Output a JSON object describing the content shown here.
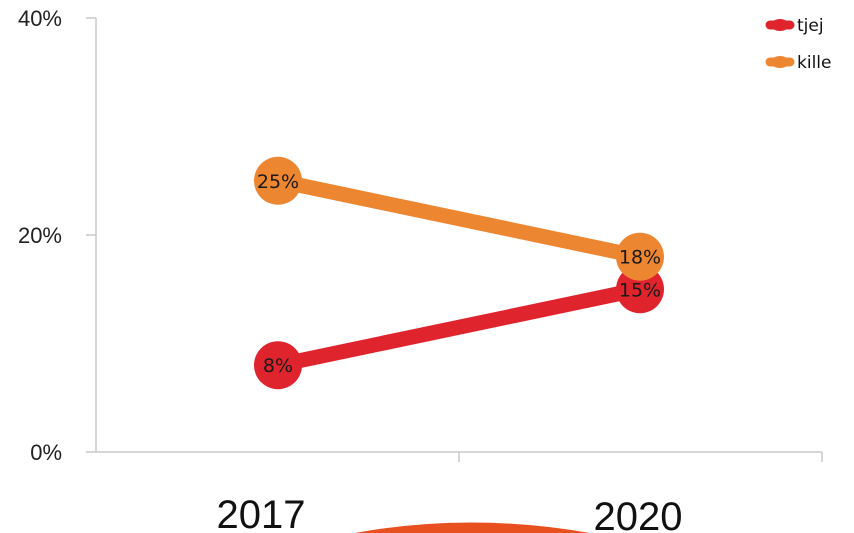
{
  "chart_data": {
    "type": "line",
    "title": "",
    "xlabel": "",
    "ylabel": "",
    "categories": [
      "2017",
      "2020"
    ],
    "ylim": [
      0,
      40
    ],
    "y_ticks": [
      {
        "value": 0,
        "label": "0%"
      },
      {
        "value": 20,
        "label": "20%"
      },
      {
        "value": 40,
        "label": "40%"
      }
    ],
    "grid": false,
    "legend_position": "top-right",
    "series": [
      {
        "name": "tjej",
        "color": "#E0242E",
        "values": [
          8,
          15
        ],
        "labels": [
          "8%",
          "15%"
        ]
      },
      {
        "name": "kille",
        "color": "#ED8631",
        "values": [
          25,
          18
        ],
        "labels": [
          "25%",
          "18%"
        ]
      }
    ]
  }
}
